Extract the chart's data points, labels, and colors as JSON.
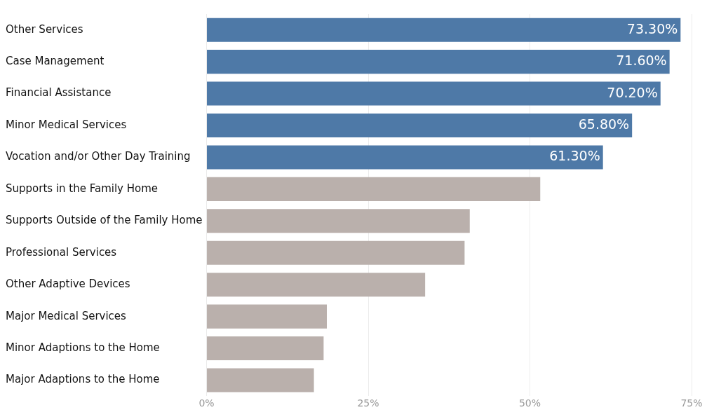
{
  "chart_data": {
    "type": "bar",
    "orientation": "horizontal",
    "categories": [
      "Other Services",
      "Case Management",
      "Financial Assistance",
      "Minor Medical Services",
      "Vocation and/or Other Day Training",
      "Supports in the Family Home",
      "Supports Outside of the Family Home",
      "Professional Services",
      "Other Adaptive Devices",
      "Major Medical Services",
      "Minor Adaptions to the Home",
      "Major Adaptions to the Home"
    ],
    "values": [
      73.3,
      71.6,
      70.2,
      65.8,
      61.3,
      51.6,
      40.7,
      39.9,
      33.8,
      18.6,
      18.1,
      16.6
    ],
    "colors": [
      "#4e79a7",
      "#4e79a7",
      "#4e79a7",
      "#4e79a7",
      "#4e79a7",
      "#bab0ac",
      "#bab0ac",
      "#bab0ac",
      "#bab0ac",
      "#bab0ac",
      "#bab0ac",
      "#bab0ac"
    ],
    "value_labels": [
      "73.30%",
      "71.60%",
      "70.20%",
      "65.80%",
      "61.30%",
      null,
      null,
      null,
      null,
      null,
      null,
      null
    ],
    "xlim": [
      0,
      75
    ],
    "xticks": [
      {
        "value": 0,
        "label": "0%"
      },
      {
        "value": 25,
        "label": "25%"
      },
      {
        "value": 50,
        "label": "50%"
      },
      {
        "value": 75,
        "label": "75%"
      }
    ],
    "grid": "x",
    "legend": false
  }
}
